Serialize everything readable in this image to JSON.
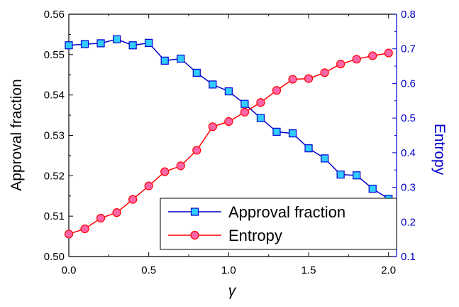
{
  "chart_data": {
    "type": "line",
    "x": [
      0.0,
      0.1,
      0.2,
      0.3,
      0.4,
      0.5,
      0.6,
      0.7,
      0.8,
      0.9,
      1.0,
      1.1,
      1.2,
      1.3,
      1.4,
      1.5,
      1.6,
      1.7,
      1.8,
      1.9,
      2.0
    ],
    "xlabel": "γ",
    "xlim": [
      0.0,
      2.05
    ],
    "xticks": [
      "0.0",
      "0.5",
      "1.0",
      "1.5",
      "2.0"
    ],
    "ylabel_left": "Approval fraction",
    "ylim_left": [
      0.5,
      0.56
    ],
    "yticks_left": [
      "0.50",
      "0.51",
      "0.52",
      "0.53",
      "0.54",
      "0.55",
      "0.56"
    ],
    "ylabel_right": "Entropy",
    "ylim_right": [
      0.1,
      0.8
    ],
    "yticks_right": [
      "0.1",
      "0.2",
      "0.3",
      "0.4",
      "0.5",
      "0.6",
      "0.7",
      "0.8"
    ],
    "grid": false,
    "legend_position": "bottom-right",
    "series": [
      {
        "name": "Approval fraction",
        "axis": "left",
        "color": "#0000cc",
        "marker": "square",
        "marker_fill": "#33ccff",
        "values": [
          0.5523,
          0.5526,
          0.5528,
          0.5538,
          0.5523,
          0.5529,
          0.5485,
          0.549,
          0.5455,
          0.5426,
          0.5409,
          0.5378,
          0.5343,
          0.5309,
          0.5305,
          0.5268,
          0.5243,
          0.5203,
          0.5201,
          0.5168,
          0.5143
        ]
      },
      {
        "name": "Entropy",
        "axis": "right",
        "color": "#ff0000",
        "marker": "circle",
        "marker_fill": "#ff66aa",
        "values": [
          0.165,
          0.18,
          0.211,
          0.227,
          0.265,
          0.304,
          0.345,
          0.362,
          0.407,
          0.475,
          0.49,
          0.517,
          0.545,
          0.58,
          0.612,
          0.614,
          0.631,
          0.656,
          0.67,
          0.68,
          0.688
        ]
      }
    ]
  },
  "colors": {
    "left_axis": "#000000",
    "right_axis": "#0000cc"
  }
}
